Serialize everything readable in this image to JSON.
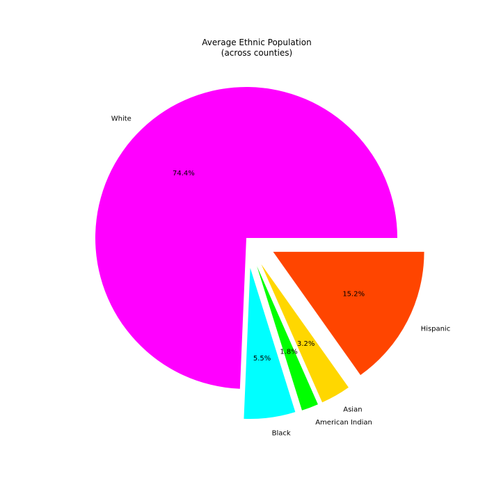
{
  "chart_data": {
    "type": "pie",
    "title": "Average Ethnic Population",
    "subtitle": "(across counties)",
    "start_angle_deg": 0,
    "direction": "counterclockwise",
    "slices": [
      {
        "label": "White",
        "percent": 74.4,
        "percent_label": "74.4%",
        "color": "#ff00ff",
        "exploded": false
      },
      {
        "label": "Black",
        "percent": 5.5,
        "percent_label": "5.5%",
        "color": "#00ffff",
        "exploded": true
      },
      {
        "label": "American Indian",
        "percent": 1.8,
        "percent_label": "1.8%",
        "color": "#00ff00",
        "exploded": true
      },
      {
        "label": "Asian",
        "percent": 3.2,
        "percent_label": "3.2%",
        "color": "#ffd700",
        "exploded": true
      },
      {
        "label": "Hispanic",
        "percent": 15.2,
        "percent_label": "15.2%",
        "color": "#ff4500",
        "exploded": true
      }
    ]
  }
}
